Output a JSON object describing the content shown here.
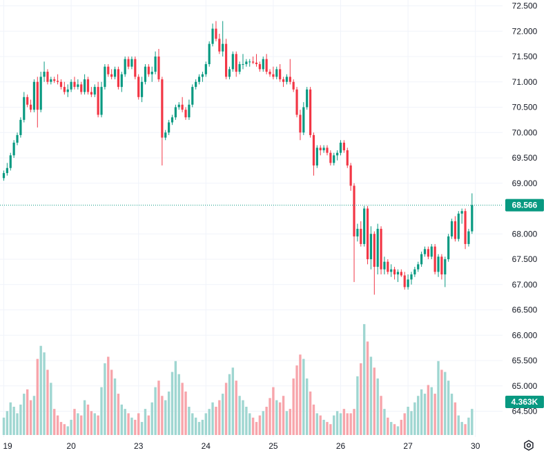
{
  "chart_data": {
    "type": "candlestick",
    "y_axis": {
      "ticks": [
        "72.500",
        "72.000",
        "71.500",
        "71.000",
        "70.500",
        "70.000",
        "69.500",
        "69.000",
        "68.000",
        "67.500",
        "67.000",
        "66.500",
        "66.000",
        "65.500",
        "65.000",
        "64.500"
      ],
      "ylim": [
        64.0,
        72.6
      ]
    },
    "x_axis": {
      "ticks": [
        {
          "label": "19",
          "index": 0
        },
        {
          "label": "20",
          "index": 20
        },
        {
          "label": "23",
          "index": 40
        },
        {
          "label": "24",
          "index": 60
        },
        {
          "label": "25",
          "index": 80
        },
        {
          "label": "26",
          "index": 100
        },
        {
          "label": "27",
          "index": 120
        },
        {
          "label": "30",
          "index": 140
        }
      ]
    },
    "current_price": {
      "value": 68.566,
      "label": "68.566",
      "color": "#089981"
    },
    "current_volume": {
      "label": "4.363K",
      "color": "#089981"
    },
    "colors": {
      "up": "#089981",
      "down": "#f23645",
      "vol_up": "#9fd6d1",
      "vol_down": "#f7a5ab",
      "grid": "#f0f3fa"
    },
    "candles": [
      [
        69.1,
        69.25,
        69.05,
        69.2
      ],
      [
        69.2,
        69.4,
        69.15,
        69.3
      ],
      [
        69.3,
        69.6,
        69.25,
        69.55
      ],
      [
        69.55,
        69.85,
        69.5,
        69.8
      ],
      [
        69.8,
        70.0,
        69.75,
        69.95
      ],
      [
        69.95,
        70.3,
        69.9,
        70.25
      ],
      [
        70.25,
        70.8,
        70.2,
        70.7
      ],
      [
        70.7,
        70.75,
        70.5,
        70.55
      ],
      [
        70.55,
        70.65,
        70.4,
        70.45
      ],
      [
        70.45,
        71.05,
        70.4,
        71.0
      ],
      [
        71.0,
        71.1,
        70.1,
        70.45
      ],
      [
        70.45,
        71.2,
        70.4,
        71.1
      ],
      [
        71.1,
        71.4,
        71.0,
        71.2
      ],
      [
        71.2,
        71.25,
        70.95,
        71.0
      ],
      [
        71.0,
        71.1,
        70.95,
        71.05
      ],
      [
        71.05,
        71.1,
        70.98,
        71.02
      ],
      [
        71.02,
        71.15,
        70.95,
        71.0
      ],
      [
        71.0,
        71.05,
        70.85,
        70.9
      ],
      [
        70.9,
        71.0,
        70.75,
        70.8
      ],
      [
        70.8,
        70.95,
        70.7,
        70.85
      ],
      [
        70.85,
        71.05,
        70.8,
        71.0
      ],
      [
        71.0,
        71.1,
        70.85,
        70.9
      ],
      [
        70.9,
        71.05,
        70.85,
        70.95
      ],
      [
        70.95,
        71.0,
        70.75,
        70.8
      ],
      [
        70.8,
        71.15,
        70.75,
        71.05
      ],
      [
        71.05,
        71.1,
        70.75,
        70.8
      ],
      [
        70.8,
        70.9,
        70.7,
        70.75
      ],
      [
        70.75,
        70.95,
        70.7,
        70.9
      ],
      [
        70.9,
        71.0,
        70.3,
        70.35
      ],
      [
        70.35,
        71.0,
        70.3,
        70.9
      ],
      [
        70.9,
        71.35,
        70.85,
        71.3
      ],
      [
        71.3,
        71.35,
        71.1,
        71.15
      ],
      [
        71.15,
        71.25,
        71.05,
        71.1
      ],
      [
        71.1,
        71.3,
        71.05,
        71.25
      ],
      [
        71.25,
        71.3,
        70.85,
        70.9
      ],
      [
        70.9,
        71.2,
        70.8,
        71.15
      ],
      [
        71.15,
        71.5,
        71.1,
        71.45
      ],
      [
        71.45,
        71.5,
        71.25,
        71.3
      ],
      [
        71.3,
        71.5,
        71.25,
        71.45
      ],
      [
        71.45,
        71.5,
        71.05,
        71.1
      ],
      [
        71.1,
        71.15,
        70.65,
        70.7
      ],
      [
        70.7,
        71.1,
        70.6,
        71.0
      ],
      [
        71.0,
        71.35,
        70.95,
        71.3
      ],
      [
        71.3,
        71.35,
        71.1,
        71.15
      ],
      [
        71.15,
        71.3,
        71.0,
        71.2
      ],
      [
        71.2,
        71.6,
        71.15,
        71.5
      ],
      [
        71.5,
        71.65,
        71.0,
        71.05
      ],
      [
        71.05,
        71.1,
        69.35,
        69.9
      ],
      [
        69.9,
        70.05,
        69.85,
        70.0
      ],
      [
        70.0,
        70.25,
        69.95,
        70.2
      ],
      [
        70.2,
        70.35,
        70.15,
        70.3
      ],
      [
        70.3,
        70.55,
        70.25,
        70.5
      ],
      [
        70.5,
        70.6,
        70.45,
        70.55
      ],
      [
        70.55,
        70.7,
        70.4,
        70.45
      ],
      [
        70.45,
        70.5,
        70.25,
        70.3
      ],
      [
        70.3,
        70.65,
        70.25,
        70.55
      ],
      [
        70.55,
        70.95,
        70.5,
        70.9
      ],
      [
        70.9,
        71.05,
        70.85,
        71.0
      ],
      [
        71.0,
        71.15,
        70.95,
        71.1
      ],
      [
        71.1,
        71.2,
        71.0,
        71.15
      ],
      [
        71.15,
        71.4,
        71.1,
        71.35
      ],
      [
        71.35,
        71.8,
        71.3,
        71.75
      ],
      [
        71.75,
        72.15,
        71.7,
        72.05
      ],
      [
        72.05,
        72.2,
        71.8,
        71.85
      ],
      [
        71.85,
        71.95,
        71.55,
        71.6
      ],
      [
        71.6,
        72.2,
        71.5,
        71.75
      ],
      [
        71.75,
        71.85,
        71.05,
        71.1
      ],
      [
        71.1,
        71.3,
        71.05,
        71.25
      ],
      [
        71.25,
        71.6,
        71.2,
        71.55
      ],
      [
        71.55,
        71.6,
        71.1,
        71.2
      ],
      [
        71.2,
        71.4,
        71.15,
        71.35
      ],
      [
        71.35,
        71.55,
        71.25,
        71.35
      ],
      [
        71.35,
        71.45,
        71.3,
        71.4
      ],
      [
        71.4,
        71.45,
        71.3,
        71.4
      ],
      [
        71.4,
        71.5,
        71.35,
        71.38
      ],
      [
        71.38,
        71.55,
        71.3,
        71.35
      ],
      [
        71.35,
        71.4,
        71.2,
        71.25
      ],
      [
        71.25,
        71.5,
        71.2,
        71.45
      ],
      [
        71.45,
        71.55,
        71.15,
        71.2
      ],
      [
        71.2,
        71.25,
        71.1,
        71.15
      ],
      [
        71.15,
        71.3,
        71.05,
        71.1
      ],
      [
        71.1,
        71.3,
        71.05,
        71.25
      ],
      [
        71.25,
        71.35,
        71.0,
        71.05
      ],
      [
        71.05,
        71.1,
        70.9,
        71.0
      ],
      [
        71.0,
        71.15,
        70.95,
        71.1
      ],
      [
        71.1,
        71.45,
        70.95,
        71.0
      ],
      [
        71.0,
        71.05,
        70.8,
        70.85
      ],
      [
        70.85,
        70.9,
        70.3,
        70.35
      ],
      [
        70.35,
        70.45,
        69.85,
        70.0
      ],
      [
        70.0,
        70.6,
        69.95,
        70.5
      ],
      [
        70.5,
        70.9,
        70.45,
        70.85
      ],
      [
        70.85,
        70.9,
        69.9,
        69.95
      ],
      [
        69.95,
        70.0,
        69.15,
        69.35
      ],
      [
        69.35,
        69.75,
        69.3,
        69.7
      ],
      [
        69.7,
        69.75,
        69.55,
        69.65
      ],
      [
        69.65,
        69.75,
        69.6,
        69.7
      ],
      [
        69.7,
        69.75,
        69.55,
        69.6
      ],
      [
        69.6,
        69.65,
        69.35,
        69.4
      ],
      [
        69.4,
        69.6,
        69.35,
        69.55
      ],
      [
        69.55,
        69.65,
        69.45,
        69.6
      ],
      [
        69.6,
        69.85,
        69.55,
        69.8
      ],
      [
        69.8,
        69.85,
        69.6,
        69.65
      ],
      [
        69.65,
        69.7,
        69.3,
        69.35
      ],
      [
        69.35,
        69.4,
        68.85,
        68.95
      ],
      [
        68.95,
        69.0,
        67.05,
        67.95
      ],
      [
        67.95,
        68.2,
        67.85,
        68.1
      ],
      [
        68.1,
        68.25,
        67.75,
        67.8
      ],
      [
        67.8,
        68.55,
        67.75,
        68.5
      ],
      [
        68.5,
        68.55,
        67.4,
        67.5
      ],
      [
        67.5,
        68.15,
        67.3,
        68.0
      ],
      [
        68.0,
        68.05,
        66.8,
        67.35
      ],
      [
        67.35,
        68.2,
        67.2,
        68.1
      ],
      [
        68.1,
        68.15,
        67.2,
        67.3
      ],
      [
        67.3,
        67.55,
        67.2,
        67.45
      ],
      [
        67.45,
        67.5,
        67.2,
        67.25
      ],
      [
        67.25,
        67.4,
        67.15,
        67.3
      ],
      [
        67.3,
        67.35,
        67.1,
        67.2
      ],
      [
        67.2,
        67.3,
        67.05,
        67.25
      ],
      [
        67.25,
        67.3,
        67.15,
        67.18
      ],
      [
        67.18,
        67.25,
        66.9,
        66.95
      ],
      [
        66.95,
        67.2,
        66.9,
        67.1
      ],
      [
        67.1,
        67.25,
        67.0,
        67.2
      ],
      [
        67.2,
        67.35,
        67.15,
        67.3
      ],
      [
        67.3,
        67.45,
        67.25,
        67.4
      ],
      [
        67.4,
        67.65,
        67.35,
        67.6
      ],
      [
        67.6,
        67.75,
        67.55,
        67.7
      ],
      [
        67.7,
        67.75,
        67.5,
        67.55
      ],
      [
        67.55,
        67.8,
        67.5,
        67.75
      ],
      [
        67.75,
        67.8,
        67.2,
        67.25
      ],
      [
        67.25,
        67.6,
        67.15,
        67.55
      ],
      [
        67.55,
        67.6,
        67.1,
        67.2
      ],
      [
        67.2,
        67.55,
        66.95,
        67.5
      ],
      [
        67.5,
        68.0,
        67.45,
        67.95
      ],
      [
        67.95,
        68.3,
        67.9,
        68.25
      ],
      [
        68.25,
        68.35,
        67.85,
        67.9
      ],
      [
        67.9,
        68.45,
        67.85,
        68.4
      ],
      [
        68.4,
        68.5,
        68.2,
        68.45
      ],
      [
        68.45,
        68.5,
        67.7,
        67.8
      ],
      [
        67.8,
        68.1,
        67.75,
        68.05
      ],
      [
        68.05,
        68.8,
        68.0,
        68.57
      ]
    ],
    "volumes": [
      0.8,
      1.1,
      1.5,
      1.3,
      1.0,
      1.4,
      1.9,
      2.1,
      1.6,
      1.8,
      3.5,
      4.1,
      3.8,
      3.0,
      2.4,
      1.2,
      0.9,
      0.6,
      0.5,
      0.4,
      0.7,
      1.2,
      1.0,
      0.9,
      1.6,
      1.4,
      1.1,
      1.0,
      0.9,
      2.2,
      3.3,
      3.6,
      3.0,
      2.6,
      1.9,
      1.4,
      1.2,
      1.0,
      0.8,
      0.7,
      1.0,
      0.6,
      1.2,
      0.9,
      1.5,
      2.2,
      2.5,
      1.8,
      1.6,
      2.0,
      2.9,
      3.4,
      2.8,
      2.4,
      2.0,
      1.3,
      1.0,
      0.8,
      0.6,
      0.7,
      1.0,
      1.2,
      1.5,
      1.3,
      1.6,
      1.9,
      2.4,
      2.8,
      3.1,
      2.5,
      1.8,
      1.6,
      1.3,
      1.0,
      0.8,
      0.6,
      0.9,
      1.1,
      1.3,
      1.7,
      2.2,
      1.6,
      1.5,
      1.8,
      1.1,
      1.2,
      2.6,
      3.2,
      3.7,
      3.5,
      2.6,
      2.0,
      1.4,
      1.0,
      0.9,
      0.7,
      0.6,
      0.5,
      0.9,
      1.1,
      1.0,
      1.2,
      1.0,
      1.0,
      1.2,
      2.7,
      3.3,
      5.1,
      4.3,
      3.6,
      3.1,
      2.6,
      1.8,
      1.2,
      0.8,
      0.6,
      0.5,
      0.4,
      0.7,
      1.0,
      1.3,
      1.1,
      1.5,
      1.8,
      2.1,
      1.9,
      2.3,
      2.2,
      1.9,
      3.4,
      3.0,
      2.9,
      2.5,
      1.9,
      1.5,
      0.9,
      0.6,
      0.5,
      0.8,
      1.2,
      2.1
    ],
    "volume_max": 5.2
  }
}
